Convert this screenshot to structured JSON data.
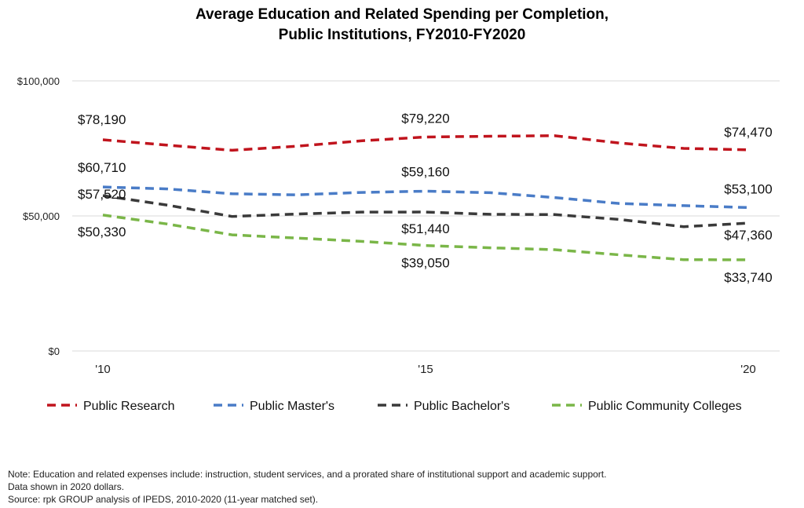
{
  "chart_data": {
    "type": "line",
    "title_lines": [
      "Average Education and Related Spending per Completion,",
      "Public Institutions, FY2010-FY2020"
    ],
    "x": [
      2010,
      2011,
      2012,
      2013,
      2014,
      2015,
      2016,
      2017,
      2018,
      2019,
      2020
    ],
    "x_tick_labels": [
      {
        "x": 2010,
        "label": "'10"
      },
      {
        "x": 2015,
        "label": "'15"
      },
      {
        "x": 2020,
        "label": "'20"
      }
    ],
    "ylim": [
      0,
      100000
    ],
    "y_tick_labels": [
      {
        "y": 0,
        "label": "$0"
      },
      {
        "y": 50000,
        "label": "$50,000"
      },
      {
        "y": 100000,
        "label": "$100,000"
      }
    ],
    "grid": true,
    "legend_position": "bottom",
    "series": [
      {
        "name": "Public Research",
        "color": "#c0141d",
        "values": [
          78190,
          76200,
          74300,
          75800,
          77800,
          79220,
          79500,
          79700,
          77000,
          75000,
          74470
        ],
        "labels": [
          {
            "x": 2010,
            "text": "$78,190"
          },
          {
            "x": 2015,
            "text": "$79,220"
          },
          {
            "x": 2020,
            "text": "$74,470"
          }
        ]
      },
      {
        "name": "Public Master's",
        "color": "#4a7cc7",
        "values": [
          60710,
          60000,
          58200,
          57800,
          58700,
          59160,
          58600,
          56800,
          54600,
          53800,
          53100
        ],
        "labels": [
          {
            "x": 2010,
            "text": "$60,710"
          },
          {
            "x": 2015,
            "text": "$59,160"
          },
          {
            "x": 2020,
            "text": "$53,100"
          }
        ]
      },
      {
        "name": "Public Bachelor's",
        "color": "#3a3a3a",
        "values": [
          57520,
          54000,
          49800,
          50700,
          51400,
          51440,
          50600,
          50500,
          48700,
          46000,
          47360
        ],
        "labels": [
          {
            "x": 2010,
            "text": "$57,520"
          },
          {
            "x": 2015,
            "text": "$51,440"
          },
          {
            "x": 2020,
            "text": "$47,360"
          }
        ]
      },
      {
        "name": "Public Community Colleges",
        "color": "#7ab648",
        "values": [
          50330,
          47000,
          43000,
          41800,
          40600,
          39050,
          38200,
          37500,
          35600,
          33800,
          33740
        ],
        "labels": [
          {
            "x": 2010,
            "text": "$50,330"
          },
          {
            "x": 2015,
            "text": "$39,050"
          },
          {
            "x": 2020,
            "text": "$33,740"
          }
        ]
      }
    ]
  },
  "notes": [
    "Note: Education and related expenses include: instruction, student services, and a prorated share of institutional support and academic support.",
    "Data shown in 2020 dollars.",
    "Source: rpk GROUP analysis of IPEDS, 2010-2020 (11-year matched set)."
  ]
}
